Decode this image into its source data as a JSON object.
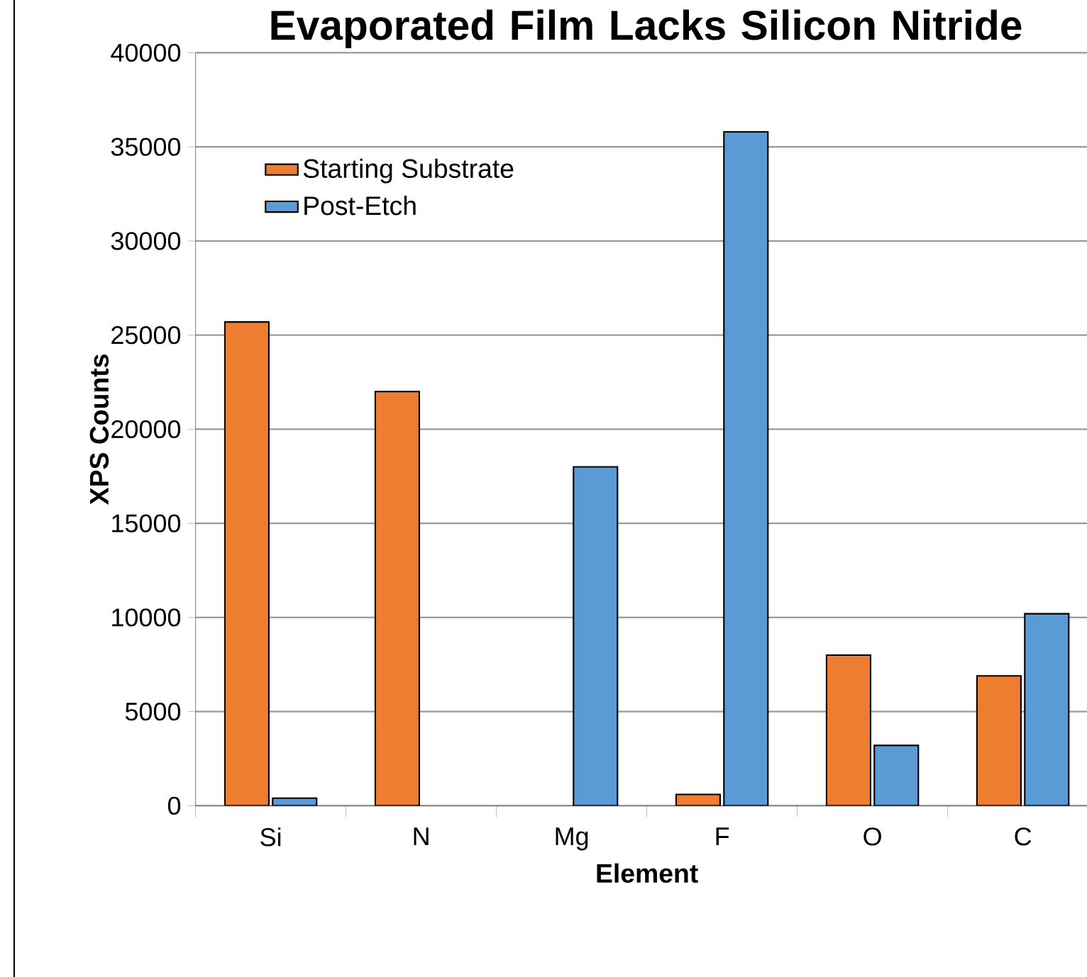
{
  "chart_data": {
    "type": "bar",
    "title": "Evaporated Film Lacks Silicon Nitride",
    "xlabel": "Element",
    "ylabel": "XPS Counts",
    "categories": [
      "Si",
      "N",
      "Mg",
      "F",
      "O",
      "C"
    ],
    "series": [
      {
        "name": "Starting Substrate",
        "color": "#ed7d31",
        "values": [
          25700,
          22000,
          null,
          600,
          8000,
          6900
        ]
      },
      {
        "name": "Post-Etch",
        "color": "#5b9bd5",
        "values": [
          400,
          null,
          18000,
          35800,
          3200,
          10200
        ]
      }
    ],
    "ylim": [
      0,
      40000
    ],
    "yticks": [
      0,
      5000,
      10000,
      15000,
      20000,
      25000,
      30000,
      35000,
      40000
    ],
    "grid": "y",
    "legend": "top left"
  }
}
